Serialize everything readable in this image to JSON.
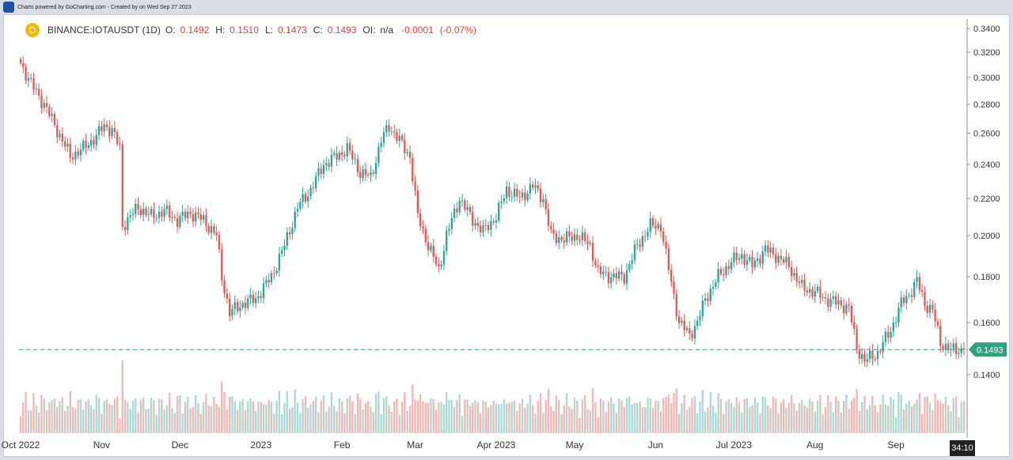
{
  "header": {
    "credit": "Charts powered by GoCharting.com - Created by  on Wed Sep 27 2023"
  },
  "legend": {
    "symbol": "BINANCE:IOTAUSDT (1D)",
    "o_label": "O:",
    "o_value": "0.1492",
    "h_label": "H:",
    "h_value": "0.1510",
    "l_label": "L:",
    "l_value": "0.1473",
    "c_label": "C:",
    "c_value": "0.1493",
    "oi_label": "OI:",
    "oi_value": "n/a",
    "change": "-0.0001",
    "change_pct": "(-0.07%)"
  },
  "price_tag": "0.1493",
  "time_remaining": "34:10",
  "colors": {
    "up": "#26a69a",
    "down": "#ef5350",
    "up_volume": "#a9d9d3",
    "down_volume": "#f6b5b3",
    "price_line": "#2ea27f",
    "legend_values": "#e0433f"
  },
  "chart_data": {
    "type": "candlestick",
    "title": "BINANCE:IOTAUSDT (1D)",
    "ylim": [
      0.128,
      0.342
    ],
    "y_scale": "log",
    "y_ticks": [
      0.34,
      0.32,
      0.3,
      0.28,
      0.26,
      0.24,
      0.22,
      0.2,
      0.18,
      0.16,
      0.14
    ],
    "y_tick_labels": [
      "0.3400",
      "0.3200",
      "0.3000",
      "0.2800",
      "0.2600",
      "0.2400",
      "0.2200",
      "0.2000",
      "0.1800",
      "0.1600",
      "0.1400"
    ],
    "x_tick_labels": [
      "Oct 2022",
      "Nov",
      "Dec",
      "2023",
      "Feb",
      "Mar",
      "Apr 2023",
      "May",
      "Jun",
      "Jul 2023",
      "Aug",
      "Sep"
    ],
    "current_price": 0.1493,
    "close_path": [
      [
        "2022-10-01",
        0.311
      ],
      [
        "2022-10-05",
        0.295
      ],
      [
        "2022-10-10",
        0.28
      ],
      [
        "2022-10-15",
        0.262
      ],
      [
        "2022-10-20",
        0.245
      ],
      [
        "2022-10-25",
        0.25
      ],
      [
        "2022-10-30",
        0.258
      ],
      [
        "2022-11-02",
        0.265
      ],
      [
        "2022-11-05",
        0.262
      ],
      [
        "2022-11-08",
        0.25
      ],
      [
        "2022-11-09",
        0.205
      ],
      [
        "2022-11-12",
        0.21
      ],
      [
        "2022-11-15",
        0.215
      ],
      [
        "2022-11-20",
        0.21
      ],
      [
        "2022-11-25",
        0.213
      ],
      [
        "2022-11-30",
        0.208
      ],
      [
        "2022-12-05",
        0.212
      ],
      [
        "2022-12-10",
        0.208
      ],
      [
        "2022-12-15",
        0.2
      ],
      [
        "2022-12-17",
        0.18
      ],
      [
        "2022-12-20",
        0.164
      ],
      [
        "2022-12-25",
        0.168
      ],
      [
        "2022-12-30",
        0.17
      ],
      [
        "2023-01-05",
        0.18
      ],
      [
        "2023-01-10",
        0.195
      ],
      [
        "2023-01-15",
        0.215
      ],
      [
        "2023-01-20",
        0.225
      ],
      [
        "2023-01-25",
        0.24
      ],
      [
        "2023-01-30",
        0.245
      ],
      [
        "2023-02-03",
        0.25
      ],
      [
        "2023-02-08",
        0.235
      ],
      [
        "2023-02-12",
        0.232
      ],
      [
        "2023-02-16",
        0.255
      ],
      [
        "2023-02-19",
        0.265
      ],
      [
        "2023-02-23",
        0.255
      ],
      [
        "2023-02-27",
        0.245
      ],
      [
        "2023-03-02",
        0.21
      ],
      [
        "2023-03-06",
        0.195
      ],
      [
        "2023-03-10",
        0.183
      ],
      [
        "2023-03-13",
        0.2
      ],
      [
        "2023-03-18",
        0.22
      ],
      [
        "2023-03-22",
        0.21
      ],
      [
        "2023-03-27",
        0.202
      ],
      [
        "2023-04-01",
        0.21
      ],
      [
        "2023-04-05",
        0.225
      ],
      [
        "2023-04-10",
        0.22
      ],
      [
        "2023-04-15",
        0.227
      ],
      [
        "2023-04-19",
        0.22
      ],
      [
        "2023-04-22",
        0.2
      ],
      [
        "2023-04-27",
        0.198
      ],
      [
        "2023-05-02",
        0.2
      ],
      [
        "2023-05-07",
        0.195
      ],
      [
        "2023-05-10",
        0.182
      ],
      [
        "2023-05-15",
        0.18
      ],
      [
        "2023-05-20",
        0.18
      ],
      [
        "2023-05-25",
        0.195
      ],
      [
        "2023-05-30",
        0.205
      ],
      [
        "2023-06-03",
        0.205
      ],
      [
        "2023-06-05",
        0.19
      ],
      [
        "2023-06-10",
        0.16
      ],
      [
        "2023-06-14",
        0.155
      ],
      [
        "2023-06-17",
        0.16
      ],
      [
        "2023-06-20",
        0.17
      ],
      [
        "2023-06-25",
        0.18
      ],
      [
        "2023-06-30",
        0.187
      ],
      [
        "2023-07-04",
        0.19
      ],
      [
        "2023-07-08",
        0.185
      ],
      [
        "2023-07-13",
        0.193
      ],
      [
        "2023-07-17",
        0.19
      ],
      [
        "2023-07-22",
        0.185
      ],
      [
        "2023-07-27",
        0.175
      ],
      [
        "2023-08-01",
        0.173
      ],
      [
        "2023-08-05",
        0.17
      ],
      [
        "2023-08-10",
        0.168
      ],
      [
        "2023-08-14",
        0.166
      ],
      [
        "2023-08-17",
        0.15
      ],
      [
        "2023-08-20",
        0.145
      ],
      [
        "2023-08-25",
        0.148
      ],
      [
        "2023-08-30",
        0.157
      ],
      [
        "2023-09-03",
        0.168
      ],
      [
        "2023-09-06",
        0.172
      ],
      [
        "2023-09-09",
        0.178
      ],
      [
        "2023-09-12",
        0.168
      ],
      [
        "2023-09-15",
        0.165
      ],
      [
        "2023-09-18",
        0.152
      ],
      [
        "2023-09-22",
        0.149
      ],
      [
        "2023-09-27",
        0.1493
      ]
    ]
  }
}
